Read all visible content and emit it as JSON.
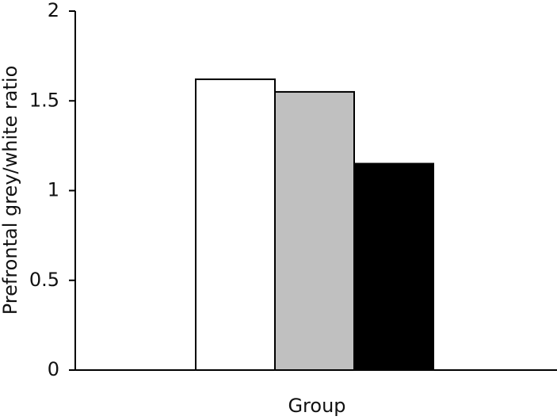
{
  "chart_data": {
    "type": "bar",
    "x_label": "Group",
    "y_label": "Prefrontal grey/white ratio",
    "categories": [
      null,
      null,
      null
    ],
    "values": [
      1.62,
      1.55,
      1.15
    ],
    "colors": [
      "#ffffff",
      "#c0c0c0",
      "#000000"
    ],
    "ylim": [
      0,
      2
    ],
    "yticks": [
      0,
      0.5,
      1,
      1.5,
      2
    ],
    "grid": false
  }
}
